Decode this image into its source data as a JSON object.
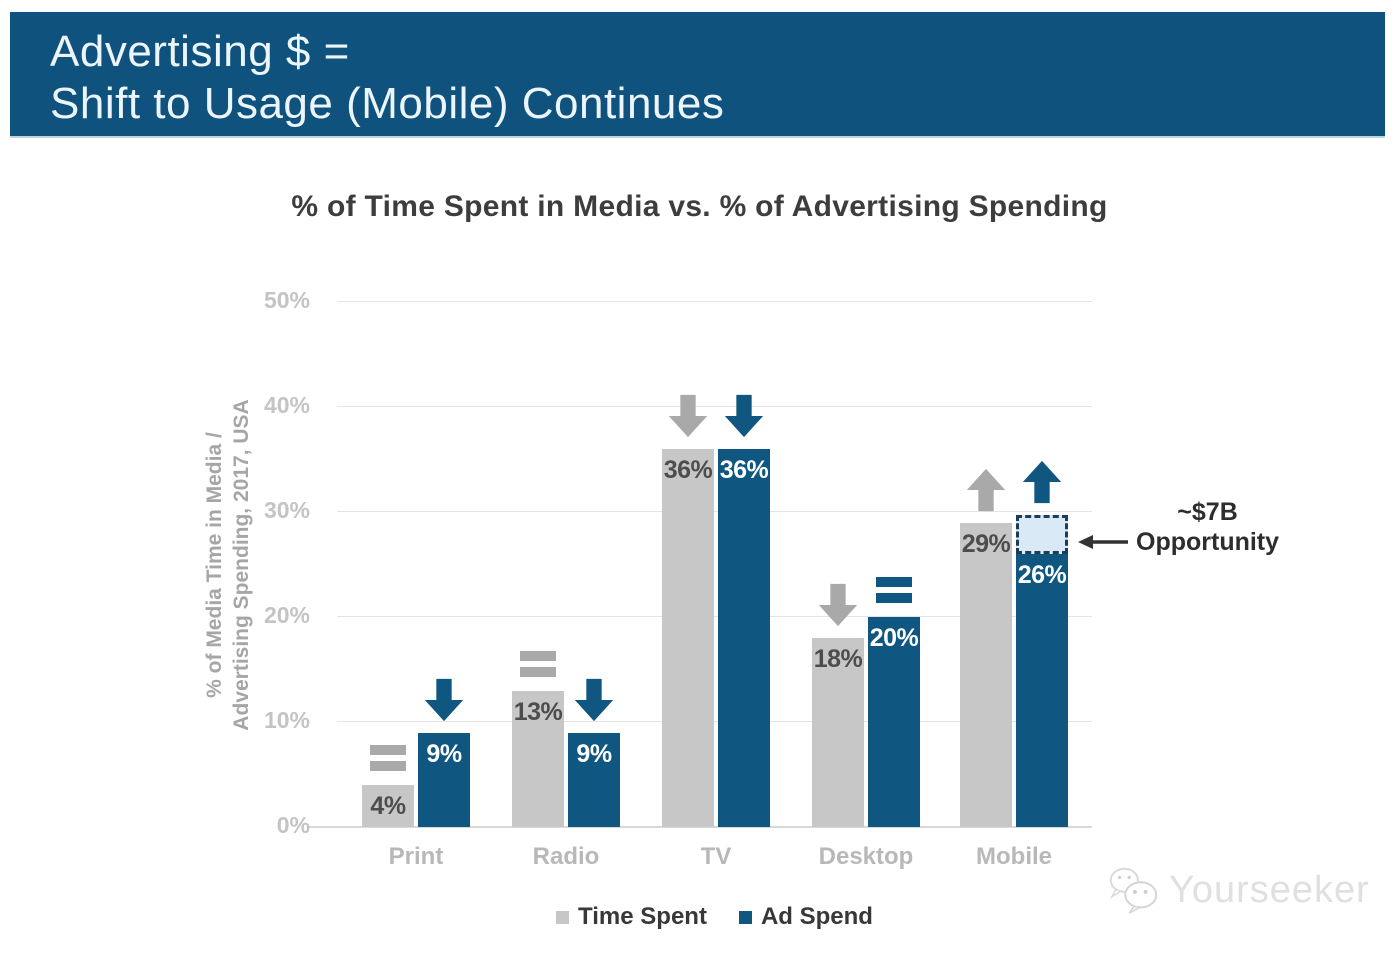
{
  "header": {
    "line1": "Advertising $ =",
    "line2": "Shift to Usage (Mobile) Continues"
  },
  "chart_data": {
    "type": "bar",
    "title": "% of Time Spent in Media vs. % of Advertising Spending",
    "ylabel_line1": "% of Media Time in Media /",
    "ylabel_line2": "Advertising Spending, 2017, USA",
    "categories": [
      "Print",
      "Radio",
      "TV",
      "Desktop",
      "Mobile"
    ],
    "series": [
      {
        "name": "Time Spent",
        "color": "#c7c7c7",
        "arrow_color": "#a9a9a9",
        "label_color": "#4d4d4d",
        "values": [
          4,
          13,
          36,
          18,
          29
        ],
        "trends": [
          "equal",
          "equal",
          "down",
          "down",
          "up"
        ]
      },
      {
        "name": "Ad Spend",
        "color": "#0f5680",
        "arrow_color": "#0f5680",
        "label_color": "#ffffff",
        "values": [
          9,
          9,
          36,
          20,
          26
        ],
        "trends": [
          "down",
          "down",
          "down",
          "equal",
          "up"
        ]
      }
    ],
    "ylim": [
      0,
      50
    ],
    "yticks": [
      "0%",
      "10%",
      "20%",
      "30%",
      "40%",
      "50%"
    ],
    "grid": true,
    "legend_position": "bottom",
    "annotation": {
      "line1": "~$7B",
      "line2": "Opportunity",
      "target_category": "Mobile",
      "target_series": "Ad Spend",
      "box_from_pct": 26,
      "box_to_pct": 29.7,
      "box_fill": "#d9eaf6",
      "box_border": "#1d3c5a"
    }
  },
  "colors": {
    "header_bg": "#0e527d",
    "bar_gray": "#c7c7c7",
    "bar_blue": "#0f5680"
  },
  "watermark": {
    "text": "Yourseeker"
  }
}
